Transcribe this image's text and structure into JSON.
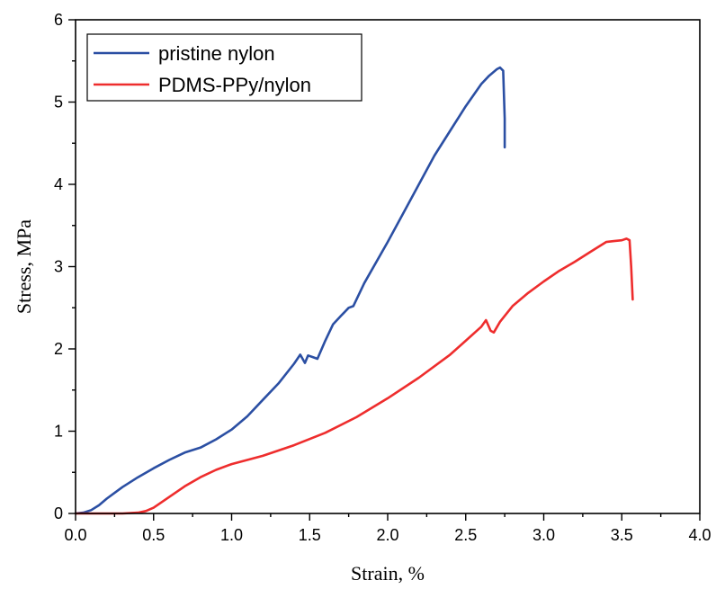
{
  "chart_data": {
    "type": "line",
    "xlabel": "Strain, %",
    "ylabel": "Stress, MPa",
    "xlim": [
      0,
      4.0
    ],
    "ylim": [
      0,
      6
    ],
    "xticks": [
      "0.0",
      "0.5",
      "1.0",
      "1.5",
      "2.0",
      "2.5",
      "3.0",
      "3.5",
      "4.0"
    ],
    "yticks": [
      "0",
      "1",
      "2",
      "3",
      "4",
      "5",
      "6"
    ],
    "legend_position": "top-left",
    "series": [
      {
        "name": "pristine nylon",
        "color": "#2b4fa3",
        "x": [
          0.0,
          0.05,
          0.1,
          0.15,
          0.2,
          0.3,
          0.4,
          0.5,
          0.6,
          0.7,
          0.8,
          0.9,
          1.0,
          1.1,
          1.2,
          1.3,
          1.4,
          1.44,
          1.47,
          1.49,
          1.52,
          1.55,
          1.6,
          1.65,
          1.7,
          1.75,
          1.78,
          1.85,
          2.0,
          2.1,
          2.2,
          2.3,
          2.4,
          2.5,
          2.6,
          2.65,
          2.7,
          2.72,
          2.74,
          2.75,
          2.75
        ],
        "y": [
          0.0,
          0.01,
          0.04,
          0.1,
          0.18,
          0.32,
          0.44,
          0.55,
          0.65,
          0.74,
          0.8,
          0.9,
          1.02,
          1.18,
          1.38,
          1.58,
          1.82,
          1.93,
          1.83,
          1.92,
          1.9,
          1.88,
          2.1,
          2.3,
          2.4,
          2.5,
          2.52,
          2.8,
          3.3,
          3.65,
          4.0,
          4.35,
          4.65,
          4.95,
          5.22,
          5.32,
          5.4,
          5.42,
          5.38,
          4.8,
          4.45
        ]
      },
      {
        "name": "PDMS-PPy/nylon",
        "color": "#ee2d2d",
        "x": [
          0.0,
          0.1,
          0.2,
          0.3,
          0.4,
          0.45,
          0.5,
          0.6,
          0.7,
          0.8,
          0.9,
          1.0,
          1.2,
          1.4,
          1.6,
          1.8,
          2.0,
          2.2,
          2.4,
          2.5,
          2.6,
          2.63,
          2.66,
          2.68,
          2.72,
          2.8,
          2.9,
          3.0,
          3.1,
          3.2,
          3.3,
          3.4,
          3.45,
          3.5,
          3.53,
          3.55,
          3.56,
          3.57
        ],
        "y": [
          0.0,
          0.0,
          0.0,
          0.0,
          0.01,
          0.03,
          0.07,
          0.2,
          0.33,
          0.44,
          0.53,
          0.6,
          0.7,
          0.83,
          0.98,
          1.17,
          1.4,
          1.65,
          1.93,
          2.1,
          2.27,
          2.35,
          2.22,
          2.2,
          2.33,
          2.52,
          2.68,
          2.82,
          2.95,
          3.06,
          3.18,
          3.3,
          3.31,
          3.32,
          3.34,
          3.32,
          3.0,
          2.6
        ]
      }
    ]
  }
}
